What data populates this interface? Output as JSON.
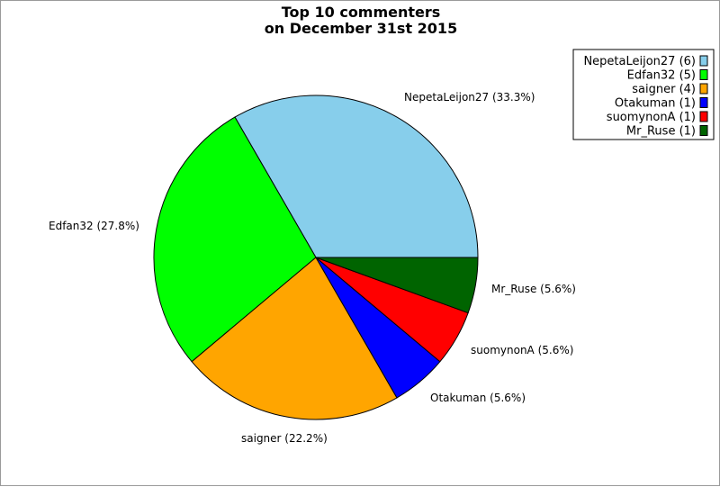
{
  "chart_data": {
    "type": "pie",
    "title": [
      "Top 10 commenters",
      "on December 31st 2015"
    ],
    "slices": [
      {
        "name": "NepetaLeijon27",
        "count": 6,
        "percent": 33.3,
        "color": "#87CEEB"
      },
      {
        "name": "Edfan32",
        "count": 5,
        "percent": 27.8,
        "color": "#00FF00"
      },
      {
        "name": "saigner",
        "count": 4,
        "percent": 22.2,
        "color": "#FFA500"
      },
      {
        "name": "Otakuman",
        "count": 1,
        "percent": 5.6,
        "color": "#0000FF"
      },
      {
        "name": "suomynonA",
        "count": 1,
        "percent": 5.6,
        "color": "#FF0000"
      },
      {
        "name": "Mr_Ruse",
        "count": 1,
        "percent": 5.6,
        "color": "#006400"
      }
    ],
    "slice_labels": [
      "NepetaLeijon27 (33.3%)",
      "Edfan32 (27.8%)",
      "saigner (22.2%)",
      "Otakuman (5.6%)",
      "suomynonA (5.6%)",
      "Mr_Ruse (5.6%)"
    ],
    "legend": {
      "position": "top-right",
      "entries": [
        "NepetaLeijon27 (6)",
        "Edfan32 (5)",
        "saigner (4)",
        "Otakuman (1)",
        "suomynonA (1)",
        "Mr_Ruse (1)"
      ]
    }
  }
}
